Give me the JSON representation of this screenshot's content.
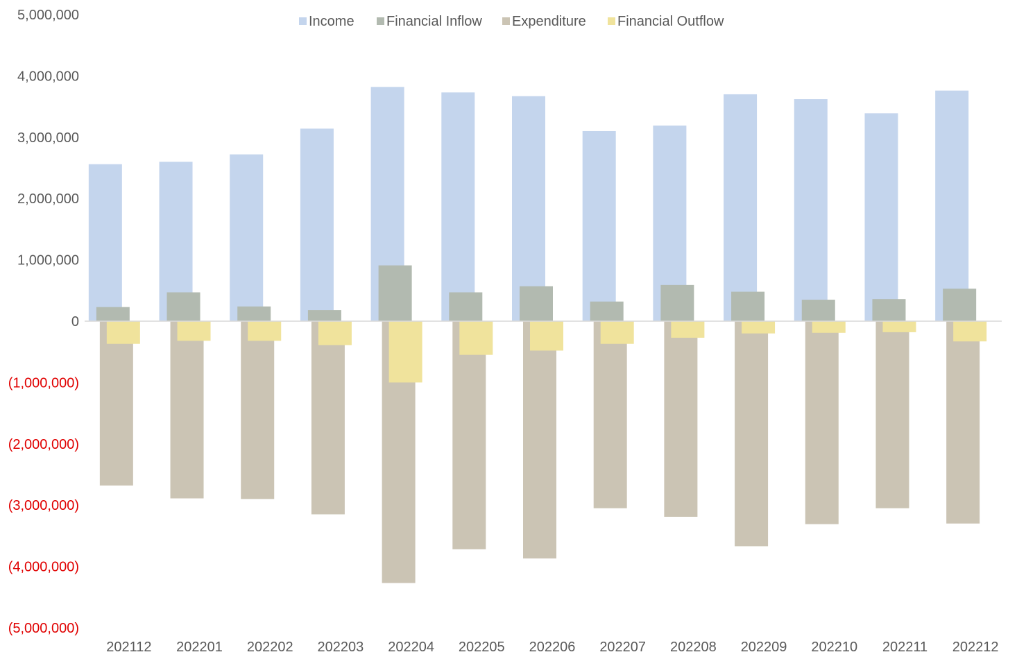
{
  "chart_data": {
    "type": "bar",
    "title": "",
    "xlabel": "",
    "ylabel": "",
    "categories": [
      "202112",
      "202201",
      "202202",
      "202203",
      "202204",
      "202205",
      "202206",
      "202207",
      "202208",
      "202209",
      "202210",
      "202211",
      "202212"
    ],
    "series": [
      {
        "name": "Income",
        "color": "#c4d5ed",
        "values": [
          2560000,
          2600000,
          2720000,
          3140000,
          3820000,
          3730000,
          3670000,
          3100000,
          3190000,
          3700000,
          3620000,
          3390000,
          3760000
        ]
      },
      {
        "name": "Financial Inflow",
        "color": "#b2bab0",
        "values": [
          230000,
          470000,
          240000,
          180000,
          910000,
          470000,
          570000,
          320000,
          590000,
          480000,
          350000,
          360000,
          530000
        ]
      },
      {
        "name": "Expenditure",
        "color": "#cbc4b4",
        "values": [
          -2680000,
          -2890000,
          -2900000,
          -3150000,
          -4270000,
          -3720000,
          -3870000,
          -3050000,
          -3190000,
          -3670000,
          -3310000,
          -3050000,
          -3300000
        ]
      },
      {
        "name": "Financial Outflow",
        "color": "#f0e39c",
        "values": [
          -370000,
          -320000,
          -320000,
          -390000,
          -1000000,
          -550000,
          -480000,
          -370000,
          -270000,
          -200000,
          -190000,
          -180000,
          -330000
        ]
      }
    ],
    "ylim": [
      -5000000,
      5000000
    ],
    "y_ticks": [
      {
        "value": 5000000,
        "label": "5,000,000"
      },
      {
        "value": 4000000,
        "label": "4,000,000"
      },
      {
        "value": 3000000,
        "label": "3,000,000"
      },
      {
        "value": 2000000,
        "label": "2,000,000"
      },
      {
        "value": 1000000,
        "label": "1,000,000"
      },
      {
        "value": 0,
        "label": "0"
      },
      {
        "value": -1000000,
        "label": "(1,000,000)"
      },
      {
        "value": -2000000,
        "label": "(2,000,000)"
      },
      {
        "value": -3000000,
        "label": "(3,000,000)"
      },
      {
        "value": -4000000,
        "label": "(4,000,000)"
      },
      {
        "value": -5000000,
        "label": "(5,000,000)"
      }
    ],
    "negative_label_color": "#e00000",
    "positive_label_color": "#595959",
    "grid": false,
    "legend_position": "top"
  }
}
